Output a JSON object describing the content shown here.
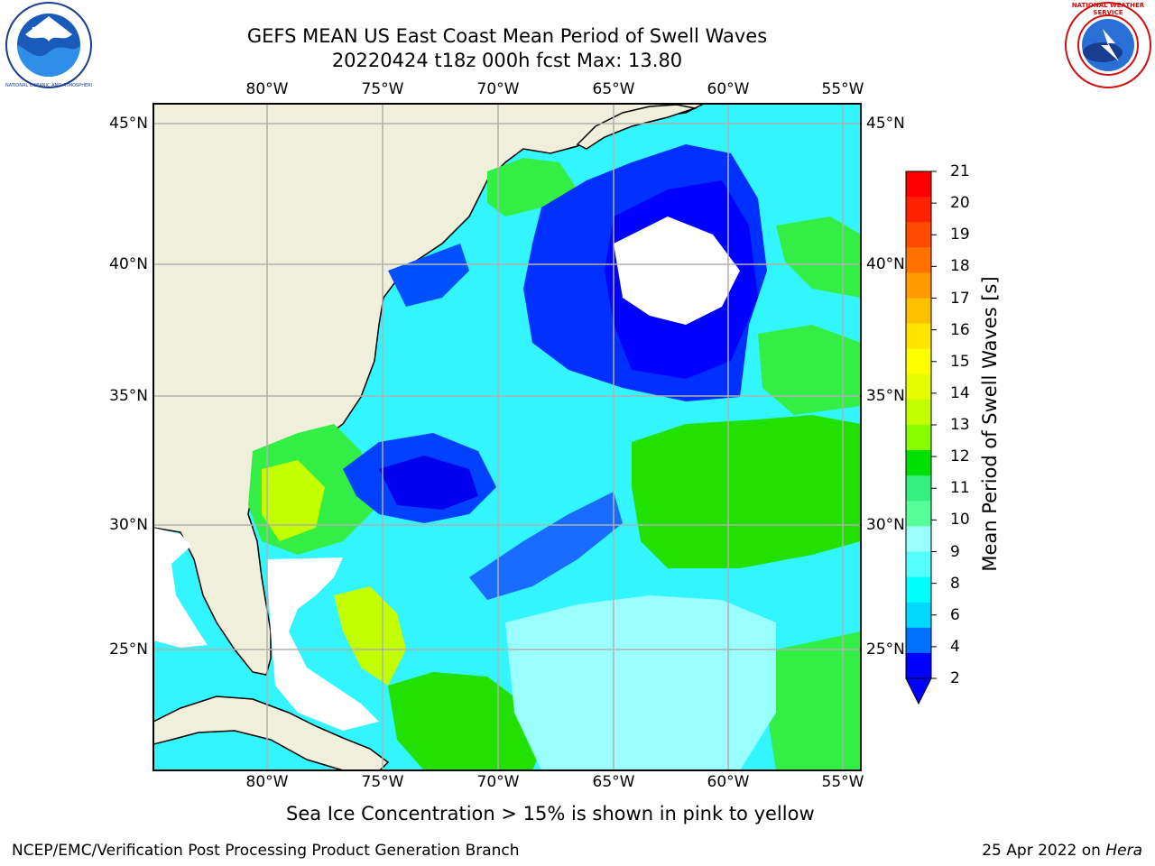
{
  "title_line1": "GEFS MEAN US East Coast Mean Period of Swell Waves",
  "title_line2": "20220424 t18z 000h fcst   Max: 13.80",
  "lon_labels": [
    "80°W",
    "75°W",
    "70°W",
    "65°W",
    "60°W",
    "55°W"
  ],
  "lat_labels": [
    "45°N",
    "40°N",
    "35°N",
    "30°N",
    "25°N"
  ],
  "colorbar": {
    "label": "Mean Period of Swell Waves [s]",
    "ticks": [
      "21",
      "20",
      "19",
      "18",
      "17",
      "16",
      "15",
      "14",
      "13",
      "12",
      "11",
      "10",
      "9",
      "8",
      "6",
      "4",
      "2"
    ],
    "colors": [
      "#ff0000",
      "#ff2200",
      "#ff4a00",
      "#ff7200",
      "#ff9a00",
      "#ffc000",
      "#ffe400",
      "#ffff00",
      "#e6ff00",
      "#c4ff00",
      "#88ff00",
      "#00e000",
      "#33f07f",
      "#55ff99",
      "#99ffff",
      "#55ffff",
      "#00ffff",
      "#00d8ff",
      "#0070ff",
      "#0000ff"
    ]
  },
  "note": "Sea Ice Concentration > 15% is shown in pink to yellow",
  "footer_left": "NCEP/EMC/Verification Post Processing Product Generation Branch",
  "footer_date": "25 Apr 2022 on",
  "footer_machine": "Hera",
  "logos": {
    "noaa_text": "NOAA",
    "noaa_ring": "NATIONAL OCEANIC AND ATMOSPHERIC ADMINISTRATION · U.S. DEPARTMENT OF COMMERCE",
    "nws_ring": "NATIONAL WEATHER SERVICE"
  },
  "colors": {
    "land": "#efefdc",
    "water_base": "#33f5ff",
    "grid": "#b0b0b0"
  }
}
